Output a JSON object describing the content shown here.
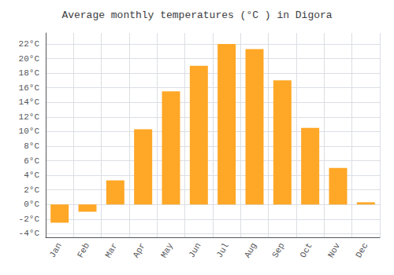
{
  "chart_data": {
    "type": "bar",
    "title": "Average monthly temperatures (°C ) in Digora",
    "categories": [
      "Jan",
      "Feb",
      "Mar",
      "Apr",
      "May",
      "Jun",
      "Jul",
      "Aug",
      "Sep",
      "Oct",
      "Nov",
      "Dec"
    ],
    "values": [
      -2.5,
      -1.0,
      3.3,
      10.3,
      15.5,
      19.0,
      22.0,
      21.3,
      17.0,
      10.5,
      5.0,
      0.3
    ],
    "color": "#FFA726",
    "ylim": [
      -4.5,
      23.5
    ],
    "yticks": [
      {
        "value": -4,
        "label": "-4°C"
      },
      {
        "value": -2,
        "label": "-2°C"
      },
      {
        "value": 0,
        "label": "0°C"
      },
      {
        "value": 2,
        "label": "2°C"
      },
      {
        "value": 4,
        "label": "4°C"
      },
      {
        "value": 6,
        "label": "6°C"
      },
      {
        "value": 8,
        "label": "8°C"
      },
      {
        "value": 10,
        "label": "10°C"
      },
      {
        "value": 12,
        "label": "12°C"
      },
      {
        "value": 14,
        "label": "14°C"
      },
      {
        "value": 16,
        "label": "16°C"
      },
      {
        "value": 18,
        "label": "18°C"
      },
      {
        "value": 20,
        "label": "20°C"
      },
      {
        "value": 22,
        "label": "22°C"
      }
    ],
    "grid": true
  }
}
